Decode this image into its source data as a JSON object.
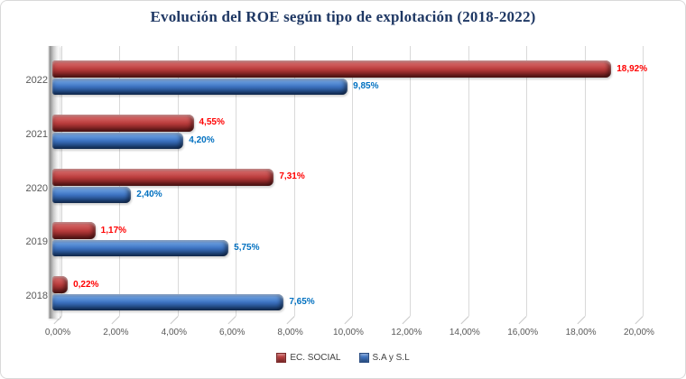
{
  "title": "Evolución del ROE según tipo de explotación (2018-2022)",
  "colors": {
    "title_text": "#1F3864",
    "axis_text": "#595959",
    "gridline": "#D9D9D9",
    "chart_border": "#D9D9D9",
    "red_label": "#FF0000",
    "blue_label": "#0070C0"
  },
  "chart_data": {
    "type": "bar",
    "orientation": "horizontal",
    "style": "3d-cylinder-excel",
    "title": "Evolución del ROE según tipo de explotación (2018-2022)",
    "categories": [
      "2022",
      "2021",
      "2020",
      "2019",
      "2018"
    ],
    "series": [
      {
        "name": "EC. SOCIAL",
        "color": "#BD3E3E",
        "label_color": "#FF0000",
        "values": [
          18.92,
          4.55,
          7.31,
          1.17,
          0.22
        ],
        "labels": [
          "18,92%",
          "4,55%",
          "7,31%",
          "1,17%",
          "0,22%"
        ]
      },
      {
        "name": "S.A y S.L",
        "color": "#3F76C6",
        "label_color": "#0070C0",
        "values": [
          9.85,
          4.2,
          2.4,
          5.75,
          7.65
        ],
        "labels": [
          "9,85%",
          "4,20%",
          "2,40%",
          "5,75%",
          "7,65%"
        ]
      }
    ],
    "xlabel": "",
    "ylabel": "",
    "xlim": [
      0,
      20
    ],
    "x_tick_step": 2,
    "x_tick_labels": [
      "0,00%",
      "2,00%",
      "4,00%",
      "6,00%",
      "8,00%",
      "10,00%",
      "12,00%",
      "14,00%",
      "16,00%",
      "18,00%",
      "20,00%"
    ],
    "grid": true,
    "legend_position": "bottom"
  }
}
